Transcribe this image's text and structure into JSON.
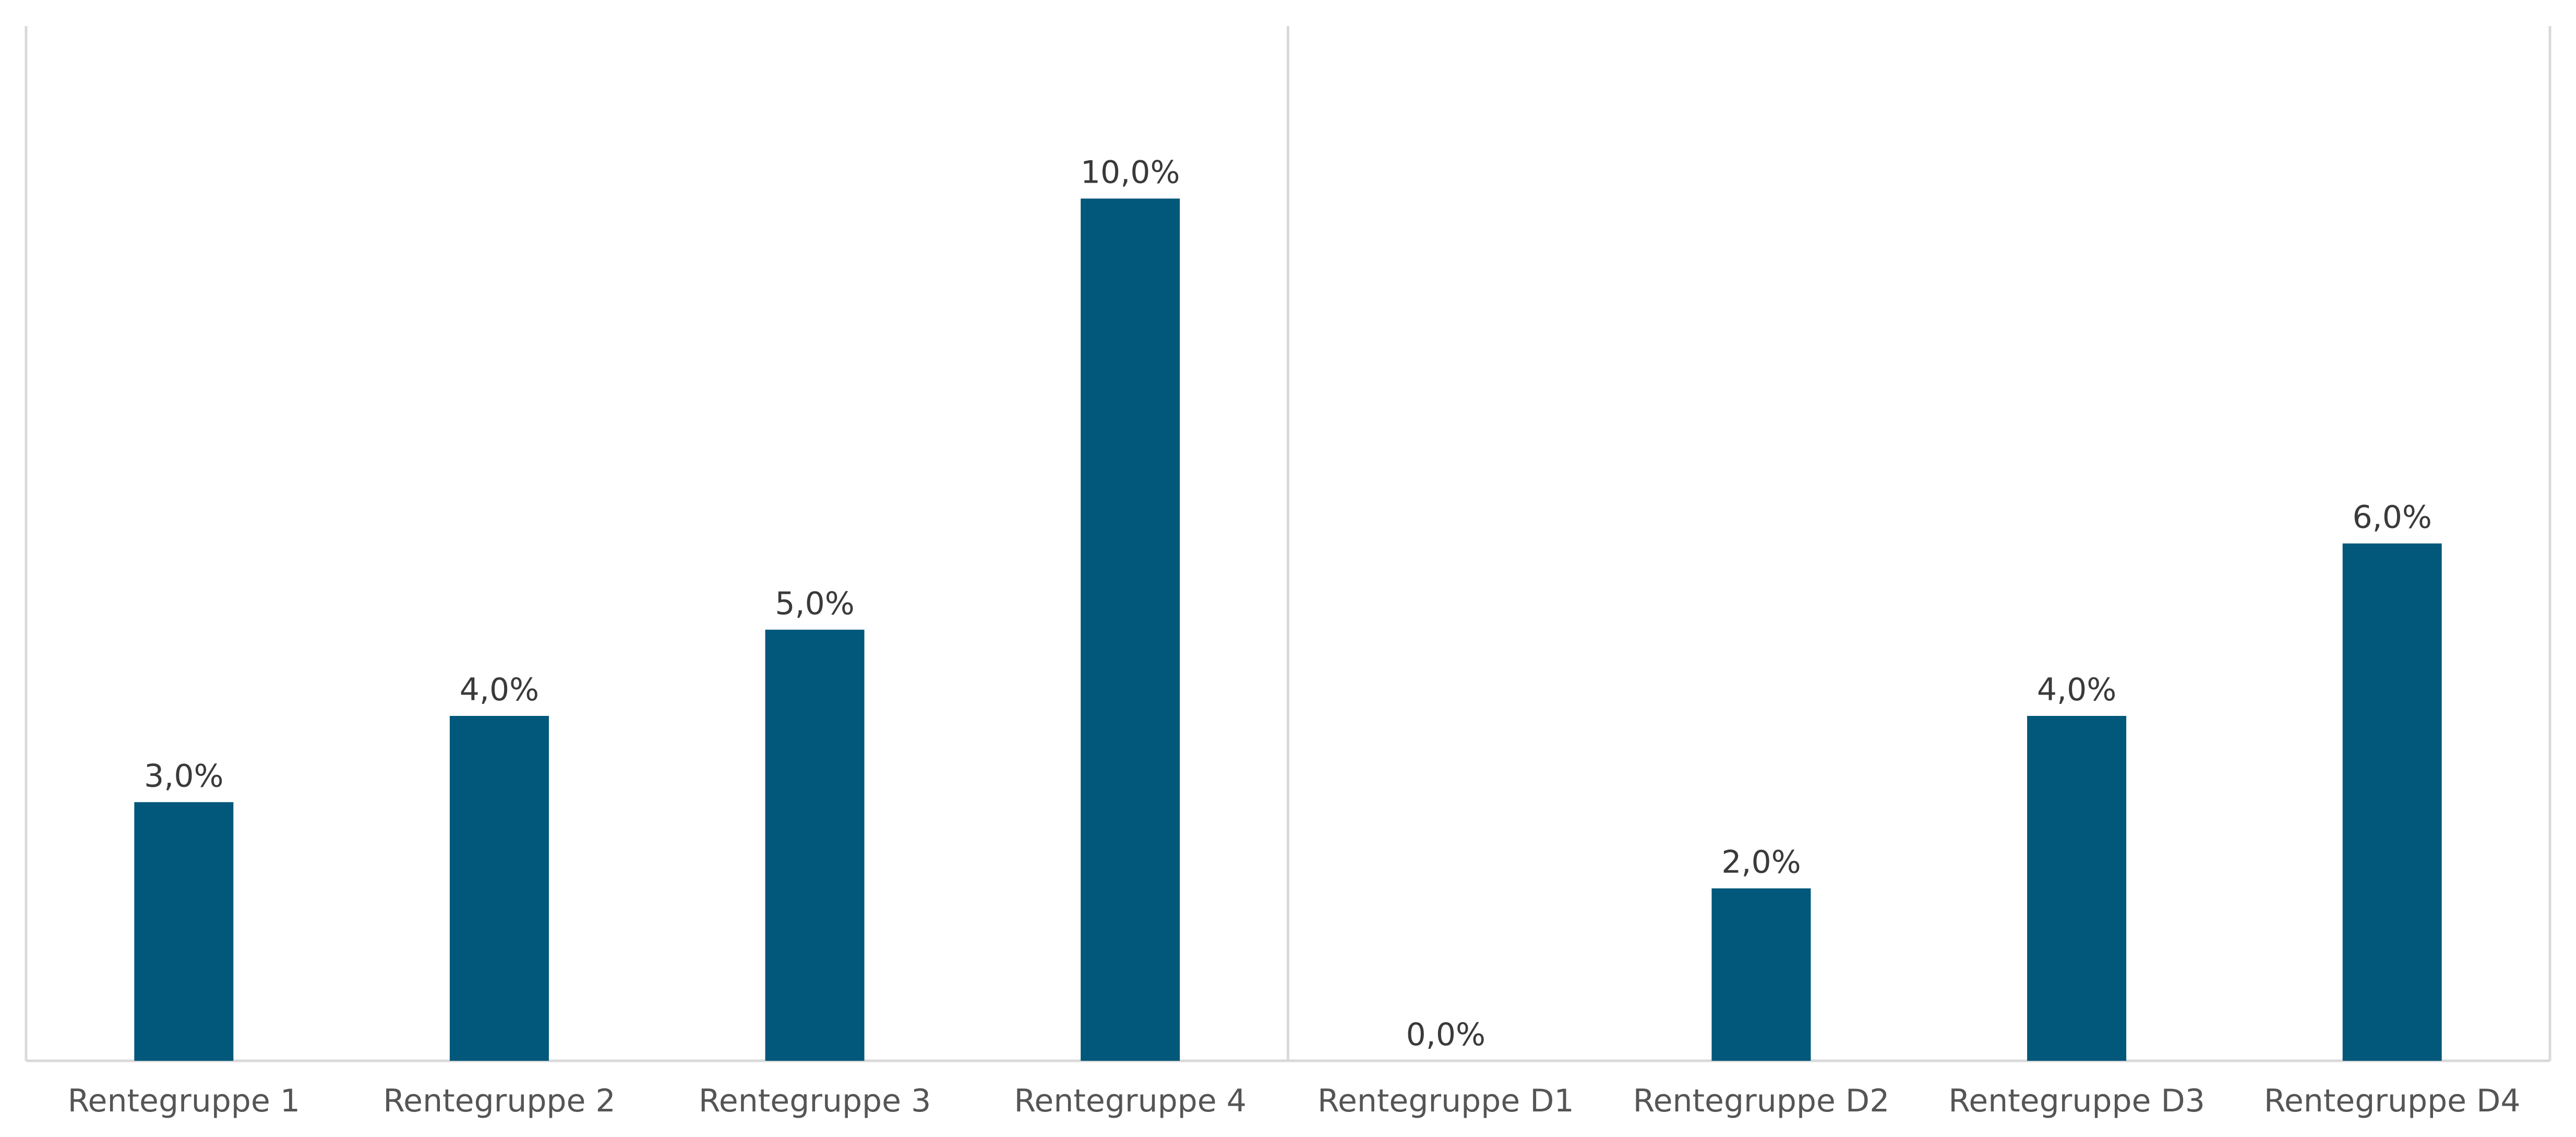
{
  "chart_data": {
    "type": "bar",
    "categories": [
      "Rentegruppe 1",
      "Rentegruppe 2",
      "Rentegruppe 3",
      "Rentegruppe 4",
      "Rentegruppe D1",
      "Rentegruppe D2",
      "Rentegruppe D3",
      "Rentegruppe D4"
    ],
    "values": [
      3.0,
      4.0,
      5.0,
      10.0,
      0.0,
      2.0,
      4.0,
      6.0
    ],
    "value_labels": [
      "3,0%",
      "4,0%",
      "5,0%",
      "10,0%",
      "0,0%",
      "2,0%",
      "4,0%",
      "6,0%"
    ],
    "title": "",
    "xlabel": "",
    "ylabel": "",
    "ylim": [
      0,
      12
    ],
    "grid": false,
    "legend": "none",
    "group_divider_after_index": 3,
    "bar_color": "#01587a",
    "axis_color": "#d9d9d9",
    "value_label_color": "#3a3a3a",
    "tick_label_color": "#555555"
  }
}
